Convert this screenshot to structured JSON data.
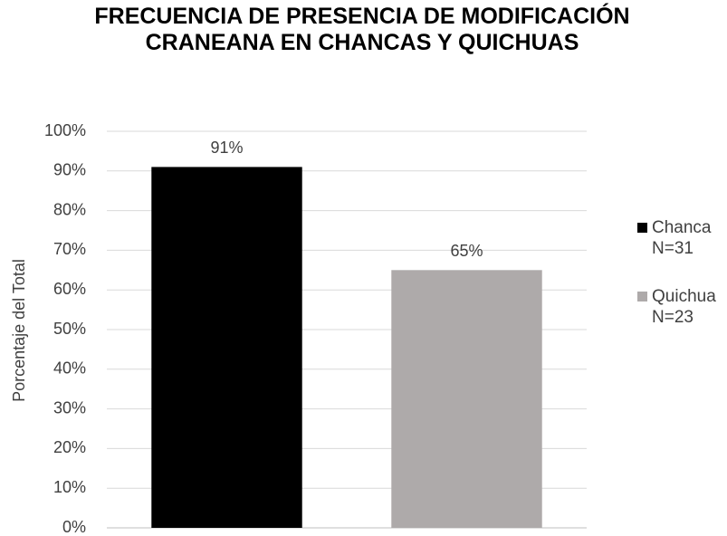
{
  "chart_data": {
    "type": "bar",
    "title": "FRECUENCIA DE PRESENCIA DE MODIFICACIÓN CRANEANA EN CHANCAS Y QUICHUAS",
    "y_label": "Porcentaje del Total",
    "categories": [
      null
    ],
    "series": [
      {
        "name": "Chanca N=31",
        "color": "#000000",
        "values": [
          91
        ],
        "value_labels": [
          "91%"
        ]
      },
      {
        "name": "Quichua N=23",
        "color": "#aeaaaa",
        "values": [
          65
        ],
        "value_labels": [
          "65%"
        ]
      }
    ],
    "ylim": [
      0,
      100
    ],
    "yticks": [
      {
        "value": 0,
        "label": "0%"
      },
      {
        "value": 10,
        "label": "10%"
      },
      {
        "value": 20,
        "label": "20%"
      },
      {
        "value": 30,
        "label": "30%"
      },
      {
        "value": 40,
        "label": "40%"
      },
      {
        "value": 50,
        "label": "50%"
      },
      {
        "value": 60,
        "label": "60%"
      },
      {
        "value": 70,
        "label": "70%"
      },
      {
        "value": 80,
        "label": "80%"
      },
      {
        "value": 90,
        "label": "90%"
      },
      {
        "value": 100,
        "label": "100%"
      }
    ],
    "grid": true,
    "legend": "right"
  }
}
